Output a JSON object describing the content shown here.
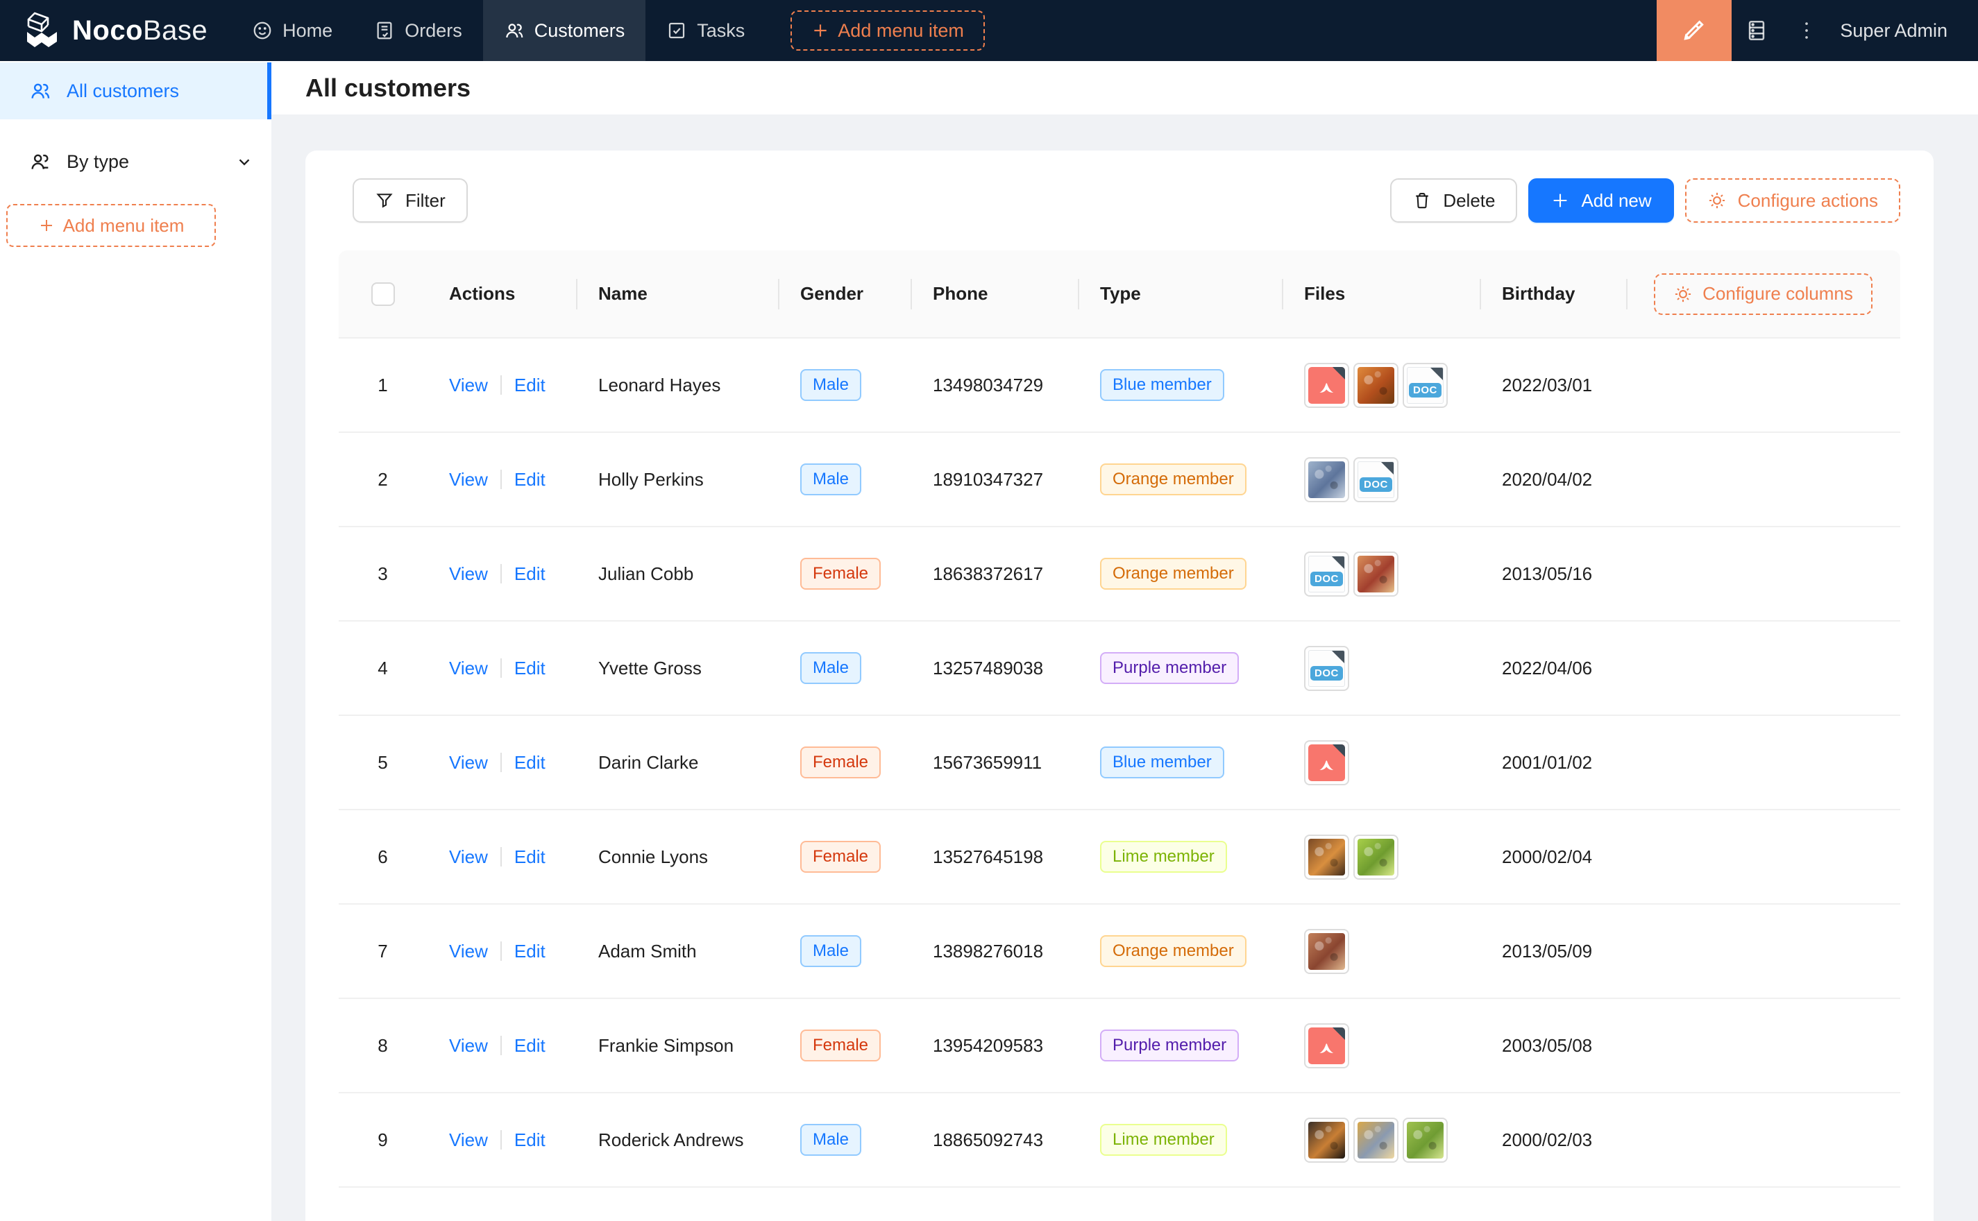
{
  "navbar": {
    "brand": {
      "bold": "Noco",
      "light": "Base"
    },
    "items": [
      {
        "label": "Home",
        "icon": "smile-icon"
      },
      {
        "label": "Orders",
        "icon": "receipt-icon"
      },
      {
        "label": "Customers",
        "icon": "team-icon",
        "active": true
      },
      {
        "label": "Tasks",
        "icon": "check-square-icon"
      }
    ],
    "add_menu_item_label": "Add menu item",
    "user": "Super Admin"
  },
  "sidebar": {
    "items": [
      {
        "label": "All customers",
        "icon": "team-icon",
        "active": true
      },
      {
        "label": "By type",
        "icon": "user-group-icon",
        "collapsible": true
      }
    ],
    "add_menu_item_label": "Add menu item"
  },
  "page": {
    "title": "All customers"
  },
  "toolbar": {
    "filter_label": "Filter",
    "delete_label": "Delete",
    "add_new_label": "Add new",
    "configure_actions_label": "Configure actions"
  },
  "table": {
    "configure_columns_label": "Configure columns",
    "doc_badge": "DOC",
    "action_labels": [
      "View",
      "Edit"
    ],
    "columns": [
      "Actions",
      "Name",
      "Gender",
      "Phone",
      "Type",
      "Files",
      "Birthday"
    ],
    "rows": [
      {
        "index": 1,
        "name": "Leonard Hayes",
        "gender": {
          "label": "Male",
          "color": "blue"
        },
        "phone": "13498034729",
        "type": {
          "label": "Blue member",
          "color": "blue"
        },
        "files": [
          {
            "type": "pdf"
          },
          {
            "type": "image",
            "name": "orange-vegetables-photo",
            "colors": [
              "#e08a3c",
              "#b34f1d",
              "#6e3a10"
            ]
          },
          {
            "type": "doc"
          }
        ],
        "birthday": "2022/03/01"
      },
      {
        "index": 2,
        "name": "Holly Perkins",
        "gender": {
          "label": "Male",
          "color": "blue"
        },
        "phone": "18910347327",
        "type": {
          "label": "Orange member",
          "color": "orange"
        },
        "files": [
          {
            "type": "image",
            "name": "group-people-photo",
            "colors": [
              "#9fb3cc",
              "#5d749b",
              "#c9d4e2"
            ]
          },
          {
            "type": "doc"
          }
        ],
        "birthday": "2020/04/02"
      },
      {
        "index": 3,
        "name": "Julian Cobb",
        "gender": {
          "label": "Female",
          "color": "volcano"
        },
        "phone": "18638372617",
        "type": {
          "label": "Orange member",
          "color": "orange"
        },
        "files": [
          {
            "type": "doc"
          },
          {
            "type": "image",
            "name": "picnic-food-photo",
            "colors": [
              "#d98f5a",
              "#a23f2e",
              "#e7c08a"
            ]
          }
        ],
        "birthday": "2013/05/16"
      },
      {
        "index": 4,
        "name": "Yvette Gross",
        "gender": {
          "label": "Male",
          "color": "blue"
        },
        "phone": "13257489038",
        "type": {
          "label": "Purple member",
          "color": "purple"
        },
        "files": [
          {
            "type": "doc"
          }
        ],
        "birthday": "2022/04/06"
      },
      {
        "index": 5,
        "name": "Darin Clarke",
        "gender": {
          "label": "Female",
          "color": "volcano"
        },
        "phone": "15673659911",
        "type": {
          "label": "Blue member",
          "color": "blue"
        },
        "files": [
          {
            "type": "pdf"
          }
        ],
        "birthday": "2001/01/02"
      },
      {
        "index": 6,
        "name": "Connie Lyons",
        "gender": {
          "label": "Female",
          "color": "volcano"
        },
        "phone": "13527645198",
        "type": {
          "label": "Lime member",
          "color": "lime"
        },
        "files": [
          {
            "type": "image",
            "name": "fruit-photo",
            "colors": [
              "#7a4a26",
              "#d98f3f",
              "#3f2a1a"
            ]
          },
          {
            "type": "image",
            "name": "lettuce-photo",
            "colors": [
              "#a8cf4a",
              "#6f9c2f",
              "#d9ea8a"
            ]
          }
        ],
        "birthday": "2000/02/04"
      },
      {
        "index": 7,
        "name": "Adam Smith",
        "gender": {
          "label": "Male",
          "color": "blue"
        },
        "phone": "13898276018",
        "type": {
          "label": "Orange member",
          "color": "orange"
        },
        "files": [
          {
            "type": "image",
            "name": "food-collage-photo",
            "colors": [
              "#c2805a",
              "#8a4530",
              "#e0b890"
            ]
          }
        ],
        "birthday": "2013/05/09"
      },
      {
        "index": 8,
        "name": "Frankie Simpson",
        "gender": {
          "label": "Female",
          "color": "volcano"
        },
        "phone": "13954209583",
        "type": {
          "label": "Purple member",
          "color": "purple"
        },
        "files": [
          {
            "type": "pdf"
          }
        ],
        "birthday": "2003/05/08"
      },
      {
        "index": 9,
        "name": "Roderick Andrews",
        "gender": {
          "label": "Male",
          "color": "blue"
        },
        "phone": "18865092743",
        "type": {
          "label": "Lime member",
          "color": "lime"
        },
        "files": [
          {
            "type": "image",
            "name": "fruit-bowl-photo",
            "colors": [
              "#3a2f28",
              "#c97f35",
              "#191410"
            ]
          },
          {
            "type": "image",
            "name": "pears-photo",
            "colors": [
              "#d9a84a",
              "#8a9ab0",
              "#f0d8a0"
            ]
          },
          {
            "type": "image",
            "name": "lettuce-photo",
            "colors": [
              "#9fc14f",
              "#6f9c33",
              "#d6e690"
            ]
          }
        ],
        "birthday": "2000/02/03"
      }
    ]
  },
  "colors": {
    "primary_blue": "#1677ff",
    "designer_orange": "#f18b62",
    "dashed_orange": "#ef7f4e",
    "navbar_bg": "#0c1c30",
    "content_bg": "#f0f2f5"
  }
}
